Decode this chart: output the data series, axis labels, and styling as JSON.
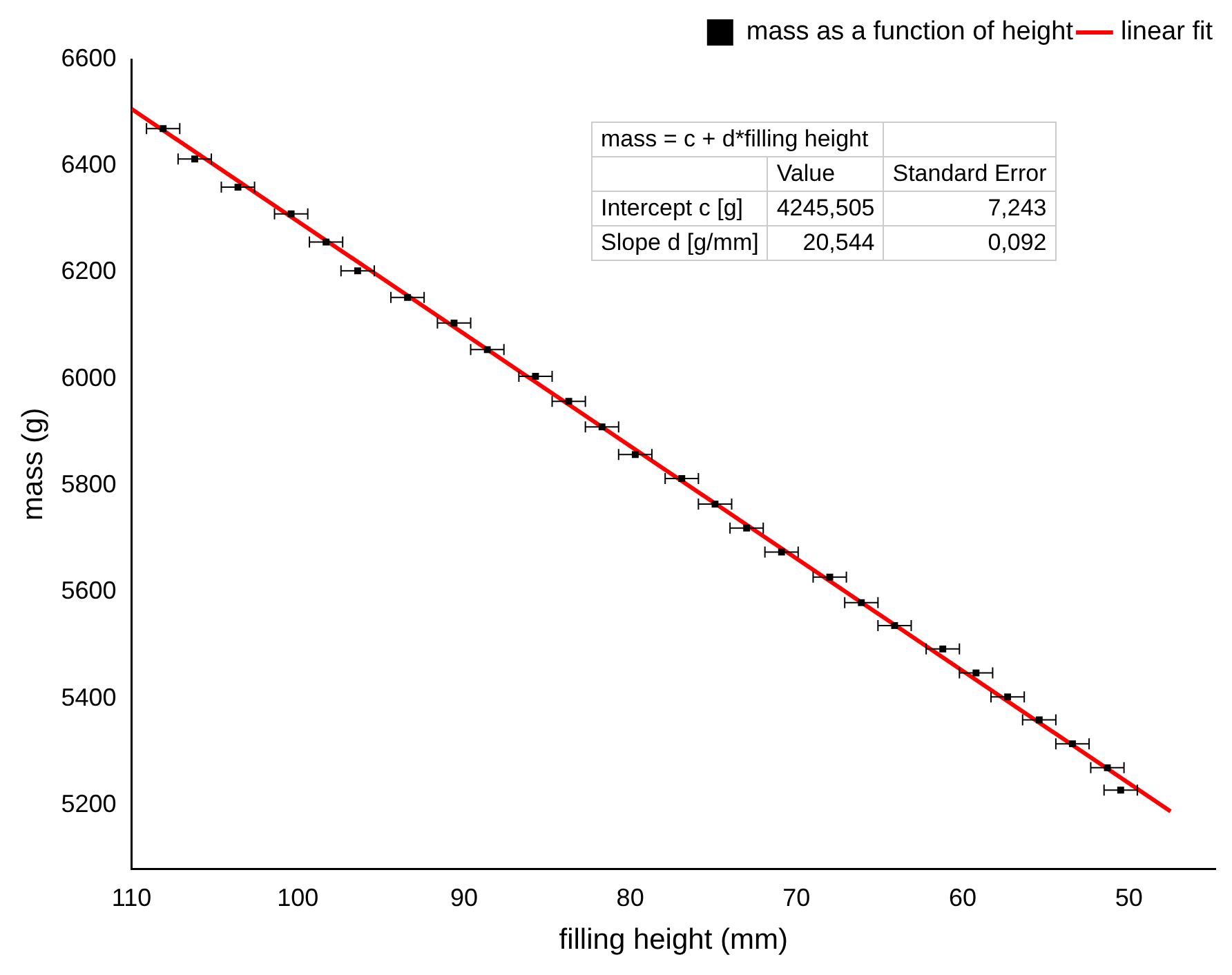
{
  "chart_data": {
    "type": "scatter",
    "xlabel": "filling height (mm)",
    "ylabel": "mass (g)",
    "xlim": [
      110,
      44.8
    ],
    "ylim": [
      5080,
      6600
    ],
    "xticks": [
      110,
      100,
      90,
      80,
      70,
      60,
      50
    ],
    "yticks": [
      5200,
      5400,
      5600,
      5800,
      6000,
      6200,
      6400,
      6600
    ],
    "grid": false,
    "legend": "top right",
    "series": [
      {
        "name": "mass as a function of height",
        "color": "#000000",
        "marker": "square",
        "x": [
          108.1,
          106.2,
          103.6,
          100.4,
          98.3,
          96.4,
          93.4,
          90.6,
          88.6,
          85.7,
          83.7,
          81.7,
          79.7,
          76.9,
          74.9,
          73.0,
          70.9,
          68.0,
          66.1,
          64.1,
          61.2,
          59.2,
          57.3,
          55.4,
          53.4,
          51.3,
          50.5
        ],
        "values": [
          6470,
          6413,
          6360,
          6310,
          6257,
          6203,
          6153,
          6105,
          6055,
          6005,
          5958,
          5910,
          5858,
          5813,
          5765,
          5720,
          5675,
          5628,
          5580,
          5537,
          5493,
          5448,
          5403,
          5360,
          5315,
          5270,
          5228
        ],
        "xerrors": [
          1,
          1,
          1,
          1,
          1,
          1,
          1,
          1,
          1,
          1,
          1,
          1,
          1,
          1,
          1,
          1,
          1,
          1,
          1,
          1,
          1,
          1,
          1,
          1,
          1,
          1,
          1
        ]
      },
      {
        "name": "linear fit",
        "type": "line",
        "marker": "none",
        "color": "#ff0000",
        "x": [
          110,
          47.5
        ],
        "values": [
          6507,
          5188
        ]
      }
    ],
    "annotations": [
      "mass = c + d*filling height",
      "Value",
      "Standard Error",
      "Intercept c [g]",
      "4245,505",
      "7,243",
      "Slope d [g/mm]",
      "20,544",
      "0,092"
    ]
  }
}
